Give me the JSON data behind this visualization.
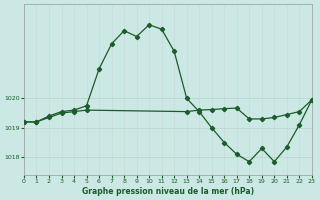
{
  "title": "Graphe pression niveau de la mer (hPa)",
  "bg_color": "#cce8e4",
  "grid_color_h": "#c0d8d0",
  "grid_color_v": "#c8dcd8",
  "line_color": "#1a5c2a",
  "x_min": 0,
  "x_max": 23,
  "y_min": 1017.4,
  "y_max": 1023.2,
  "yticks": [
    1018,
    1019,
    1020
  ],
  "xticks": [
    0,
    1,
    2,
    3,
    4,
    5,
    6,
    7,
    8,
    9,
    10,
    11,
    12,
    13,
    14,
    15,
    16,
    17,
    18,
    19,
    20,
    21,
    22,
    23
  ],
  "line1_x": [
    0,
    1,
    2,
    3,
    4,
    5,
    6,
    7,
    8,
    9,
    10,
    11,
    12,
    13,
    14,
    15,
    16,
    17,
    18,
    19,
    20,
    21,
    22,
    23
  ],
  "line1_y": [
    1019.2,
    1019.2,
    1019.4,
    1019.55,
    1019.6,
    1019.75,
    1021.0,
    1021.85,
    1022.3,
    1022.1,
    1022.5,
    1022.35,
    1021.6,
    1020.0,
    1019.55,
    1019.0,
    1018.5,
    1018.1,
    1017.85,
    1018.3,
    1017.85,
    1018.35,
    1019.1,
    1019.95
  ],
  "line2_x": [
    0,
    1,
    2,
    3,
    4,
    5,
    13,
    14,
    15,
    16,
    17,
    18,
    19,
    20,
    21,
    22,
    23
  ],
  "line2_y": [
    1019.2,
    1019.2,
    1019.35,
    1019.5,
    1019.55,
    1019.6,
    1019.55,
    1019.6,
    1019.62,
    1019.65,
    1019.67,
    1019.3,
    1019.3,
    1019.35,
    1019.45,
    1019.55,
    1019.95
  ]
}
